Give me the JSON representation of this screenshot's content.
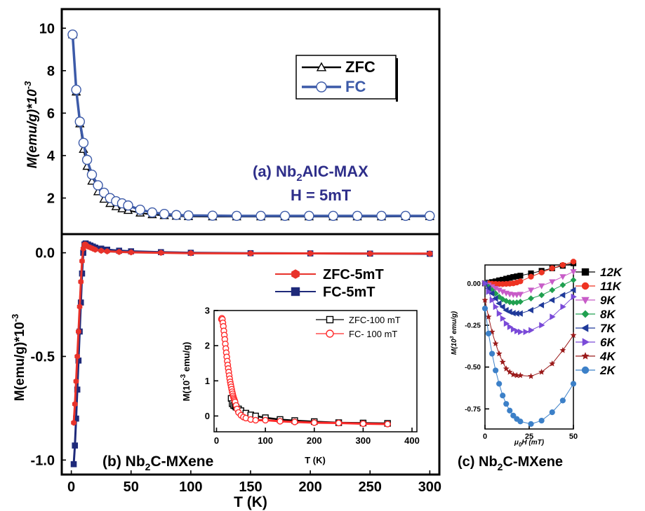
{
  "colors": {
    "zfc_a": "#000000",
    "fc_a": "#3c5aa8",
    "zfc_b": "#e8322a",
    "fc_b": "#1f2a7a",
    "zfc_ins": "#000000",
    "fc_ins": "#ff2a2a",
    "navy_text": "#2e2e8a",
    "c_12K": "#000000",
    "c_11K": "#ee3322",
    "c_9K": "#c85cc8",
    "c_8K": "#20a050",
    "c_7K": "#203a9a",
    "c_6K": "#7a4ad8",
    "c_4K": "#9a1a1a",
    "c_2K": "#3c80c8"
  },
  "chart_data": [
    {
      "id": "a",
      "type": "scatter",
      "title_parts": [
        "(a) Nb",
        "2",
        "AlC-MAX"
      ],
      "subtitle": "H = 5mT",
      "ylabel": "M(emu/g)*10",
      "ylabel_exp": "-3",
      "xlim": [
        -5,
        308
      ],
      "ylim": [
        0.3,
        10.9
      ],
      "yticks": [
        2,
        4,
        6,
        8,
        10
      ],
      "legend_position": "top-right",
      "series": [
        {
          "name": "ZFC",
          "marker": "triangle",
          "x": [
            4,
            7,
            10,
            13,
            16,
            20,
            25,
            30,
            35,
            40,
            45,
            50,
            60,
            70,
            80,
            90,
            100,
            120,
            140,
            160,
            180,
            200,
            220,
            240,
            260,
            280,
            300
          ],
          "y": [
            9.7,
            7.0,
            5.5,
            4.3,
            3.5,
            2.8,
            2.3,
            1.95,
            1.75,
            1.6,
            1.5,
            1.42,
            1.3,
            1.22,
            1.18,
            1.15,
            1.13,
            1.12,
            1.12,
            1.12,
            1.12,
            1.12,
            1.12,
            1.12,
            1.12,
            1.13,
            1.13
          ]
        },
        {
          "name": "FC",
          "marker": "circle",
          "x": [
            4,
            7,
            10,
            13,
            16,
            20,
            25,
            30,
            35,
            40,
            45,
            50,
            60,
            70,
            80,
            90,
            100,
            120,
            140,
            160,
            180,
            200,
            220,
            240,
            260,
            280,
            300
          ],
          "y": [
            9.7,
            7.1,
            5.6,
            4.6,
            3.8,
            3.1,
            2.6,
            2.25,
            2.0,
            1.85,
            1.75,
            1.65,
            1.45,
            1.32,
            1.25,
            1.2,
            1.18,
            1.17,
            1.16,
            1.16,
            1.16,
            1.16,
            1.16,
            1.16,
            1.16,
            1.16,
            1.16
          ]
        }
      ]
    },
    {
      "id": "b",
      "type": "scatter",
      "title_parts": [
        "(b) Nb",
        "2",
        "C-MXene"
      ],
      "xlabel": "T (K)",
      "ylabel": "M(emu/g)*10",
      "ylabel_exp": "-3",
      "xlim": [
        -8,
        308
      ],
      "ylim": [
        -1.07,
        0.09
      ],
      "xticks": [
        0,
        50,
        100,
        150,
        200,
        250,
        300
      ],
      "yticks": [
        -1.0,
        -0.5,
        0.0
      ],
      "ytick_labels": [
        "-1.0",
        "-0.5",
        "0.0"
      ],
      "legend_position": "top-right",
      "series": [
        {
          "name": "ZFC-5mT",
          "marker": "hexagon",
          "x": [
            2,
            3,
            4,
            5,
            6,
            7,
            8,
            9,
            10,
            11,
            12,
            14,
            16,
            18,
            20,
            25,
            30,
            40,
            50,
            75,
            100,
            150,
            200,
            250,
            300
          ],
          "y": [
            -0.82,
            -0.73,
            -0.62,
            -0.5,
            -0.38,
            -0.26,
            -0.14,
            -0.04,
            0.02,
            0.04,
            0.04,
            0.03,
            0.025,
            0.02,
            0.015,
            0.01,
            0.007,
            0.004,
            0.002,
            0.0,
            -0.002,
            -0.003,
            -0.003,
            -0.004,
            -0.004
          ]
        },
        {
          "name": "FC-5mT",
          "marker": "square",
          "x": [
            2,
            3,
            4,
            5,
            6,
            7,
            8,
            9,
            10,
            11,
            12,
            14,
            16,
            18,
            20,
            25,
            30,
            40,
            50,
            75,
            100,
            150,
            200,
            250,
            300
          ],
          "y": [
            -1.02,
            -0.93,
            -0.8,
            -0.66,
            -0.52,
            -0.38,
            -0.24,
            -0.1,
            0.0,
            0.04,
            0.045,
            0.04,
            0.035,
            0.03,
            0.025,
            0.02,
            0.015,
            0.01,
            0.007,
            0.003,
            0.0,
            -0.002,
            -0.003,
            -0.004,
            -0.005
          ]
        }
      ]
    },
    {
      "id": "b_inset",
      "type": "scatter",
      "xlabel": "T (K)",
      "ylabel": "M(10",
      "ylabel_exp": "-3",
      "ylabel_tail": " emu/g)",
      "xlim": [
        -5,
        410
      ],
      "ylim": [
        -0.45,
        3.0
      ],
      "xticks": [
        0,
        100,
        200,
        300,
        400
      ],
      "yticks": [
        0,
        1,
        2,
        3
      ],
      "legend_position": "top-right",
      "series": [
        {
          "name": "ZFC-100 mT",
          "marker": "square",
          "x": [
            30,
            32,
            35,
            38,
            40,
            45,
            50,
            60,
            70,
            80,
            100,
            130,
            160,
            200,
            250,
            300,
            350
          ],
          "y": [
            0.5,
            0.35,
            0.3,
            0.28,
            0.25,
            0.2,
            0.15,
            0.08,
            0.03,
            0.0,
            -0.05,
            -0.1,
            -0.13,
            -0.16,
            -0.19,
            -0.2,
            -0.21
          ]
        },
        {
          "name": "FC- 100 mT",
          "marker": "circle",
          "x": [
            10,
            11,
            12,
            13,
            14,
            15,
            16,
            17,
            18,
            19,
            20,
            21,
            22,
            23,
            24,
            25,
            26,
            27,
            28,
            29,
            30,
            31,
            32,
            33,
            34,
            35,
            36,
            37,
            38,
            40,
            42,
            45,
            50,
            55,
            60,
            70,
            80,
            100,
            130,
            160,
            200,
            250,
            300,
            350
          ],
          "y": [
            2.75,
            2.78,
            2.75,
            2.65,
            2.55,
            2.42,
            2.3,
            2.18,
            2.05,
            1.92,
            1.8,
            1.68,
            1.56,
            1.45,
            1.35,
            1.25,
            1.15,
            1.06,
            0.97,
            0.9,
            0.83,
            0.76,
            0.69,
            0.63,
            0.57,
            0.52,
            0.48,
            0.44,
            0.4,
            0.3,
            0.2,
            0.1,
            0.02,
            -0.03,
            -0.06,
            -0.1,
            -0.12,
            -0.12,
            -0.15,
            -0.17,
            -0.19,
            -0.2,
            -0.22,
            -0.23
          ]
        }
      ]
    },
    {
      "id": "c",
      "type": "line",
      "title_parts": [
        "(c) Nb",
        "2",
        "C-MXene"
      ],
      "xlabel": "μ",
      "xlabel_sub": "0",
      "xlabel_tail": "H (mT)",
      "ylabel": "M(10",
      "ylabel_exp": "3",
      "ylabel_tail": " emu/g)",
      "xlim": [
        0,
        50
      ],
      "ylim": [
        -0.87,
        0.11
      ],
      "xticks": [
        0,
        25,
        50
      ],
      "yticks": [
        0.0,
        -0.25,
        -0.5,
        -0.75
      ],
      "ytick_labels": [
        "0.00",
        "-0.25",
        "-0.50",
        "-0.75"
      ],
      "legend_position": "right",
      "series": [
        {
          "name": "12K",
          "marker": "square",
          "color_key": "c_12K",
          "x": [
            0,
            2,
            4,
            6,
            8,
            10,
            12,
            14,
            16,
            18,
            20,
            26,
            32,
            38,
            44,
            50
          ],
          "y": [
            0.0,
            0.004,
            0.008,
            0.012,
            0.018,
            0.022,
            0.028,
            0.033,
            0.038,
            0.042,
            0.046,
            0.06,
            0.075,
            0.09,
            0.105,
            0.12
          ]
        },
        {
          "name": "11K",
          "marker": "circle",
          "color_key": "c_11K",
          "x": [
            0,
            2,
            4,
            6,
            8,
            10,
            12,
            14,
            16,
            18,
            20,
            26,
            32,
            38,
            44,
            50
          ],
          "y": [
            0.0,
            0.0,
            -0.002,
            -0.003,
            -0.004,
            -0.004,
            -0.003,
            -0.002,
            0.0,
            0.005,
            0.012,
            0.04,
            0.065,
            0.09,
            0.11,
            0.13
          ]
        },
        {
          "name": "9K",
          "marker": "tri-down",
          "color_key": "c_9K",
          "x": [
            0,
            2,
            4,
            6,
            8,
            10,
            12,
            14,
            16,
            18,
            20,
            26,
            32,
            38,
            44,
            50
          ],
          "y": [
            0.0,
            -0.01,
            -0.02,
            -0.03,
            -0.04,
            -0.05,
            -0.058,
            -0.064,
            -0.067,
            -0.068,
            -0.065,
            -0.04,
            -0.015,
            0.01,
            0.04,
            0.07
          ]
        },
        {
          "name": "8K",
          "marker": "diamond",
          "color_key": "c_8K",
          "x": [
            0,
            2,
            4,
            6,
            8,
            10,
            12,
            14,
            16,
            18,
            20,
            26,
            32,
            38,
            44,
            50
          ],
          "y": [
            0.0,
            -0.02,
            -0.04,
            -0.06,
            -0.08,
            -0.095,
            -0.105,
            -0.112,
            -0.115,
            -0.114,
            -0.11,
            -0.09,
            -0.07,
            -0.04,
            -0.01,
            0.02
          ]
        },
        {
          "name": "7K",
          "marker": "tri-left",
          "color_key": "c_7K",
          "x": [
            0,
            2,
            4,
            6,
            8,
            10,
            12,
            14,
            16,
            18,
            20,
            26,
            32,
            38,
            44,
            50
          ],
          "y": [
            0.0,
            -0.03,
            -0.06,
            -0.09,
            -0.12,
            -0.14,
            -0.16,
            -0.17,
            -0.178,
            -0.18,
            -0.18,
            -0.16,
            -0.13,
            -0.1,
            -0.07,
            -0.04
          ]
        },
        {
          "name": "6K",
          "marker": "tri-right",
          "color_key": "c_6K",
          "x": [
            0,
            2,
            4,
            6,
            8,
            10,
            12,
            14,
            16,
            18,
            20,
            23,
            26,
            32,
            38,
            44,
            50
          ],
          "y": [
            0.0,
            -0.05,
            -0.1,
            -0.14,
            -0.18,
            -0.21,
            -0.24,
            -0.26,
            -0.275,
            -0.285,
            -0.29,
            -0.29,
            -0.28,
            -0.25,
            -0.2,
            -0.14,
            -0.08
          ]
        },
        {
          "name": "4K",
          "marker": "star",
          "color_key": "c_4K",
          "x": [
            0,
            2,
            4,
            6,
            8,
            10,
            12,
            14,
            16,
            18,
            20,
            26,
            32,
            38,
            44,
            50
          ],
          "y": [
            -0.1,
            -0.2,
            -0.29,
            -0.36,
            -0.42,
            -0.47,
            -0.51,
            -0.53,
            -0.545,
            -0.55,
            -0.55,
            -0.555,
            -0.53,
            -0.48,
            -0.4,
            -0.31
          ]
        },
        {
          "name": "2K",
          "marker": "circle",
          "color_key": "c_2K",
          "x": [
            0,
            2,
            4,
            6,
            8,
            10,
            12,
            14,
            16,
            18,
            20,
            26,
            32,
            38,
            44,
            50
          ],
          "y": [
            -0.15,
            -0.3,
            -0.42,
            -0.52,
            -0.6,
            -0.67,
            -0.72,
            -0.76,
            -0.79,
            -0.81,
            -0.825,
            -0.84,
            -0.82,
            -0.77,
            -0.7,
            -0.6
          ]
        }
      ]
    }
  ]
}
